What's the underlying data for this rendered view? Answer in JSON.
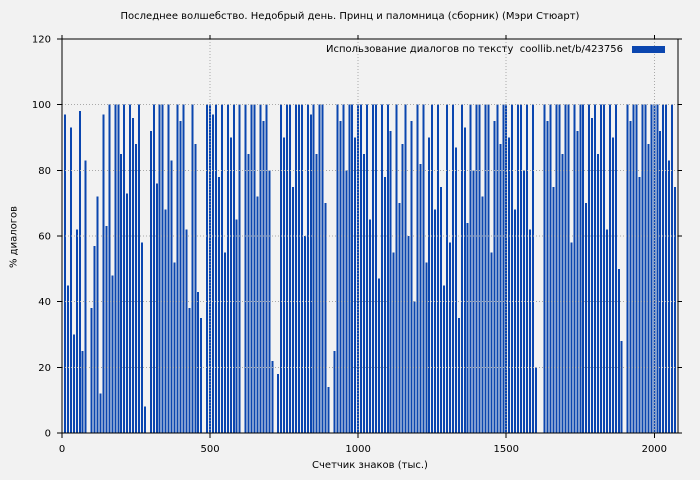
{
  "colors": {
    "background": "#f2f2f2",
    "bar": "#0b46af",
    "grid": "#a9a9a9",
    "axis": "#000000",
    "text": "#000000"
  },
  "chart_data": {
    "type": "bar",
    "title": "Последнее волшебство. Недобрый день. Принц и паломница (сборник) (Мэри Стюарт)",
    "legend": "Использование диалогов по тексту  coollib.net/b/423756",
    "legend_position": "top-right-inside",
    "xlabel": "Счетчик знаков (тыс.)",
    "ylabel": "% диалогов",
    "grid": true,
    "xlim": [
      0,
      2080
    ],
    "ylim": [
      0,
      120
    ],
    "x_ticks": [
      0,
      500,
      1000,
      1500,
      2000
    ],
    "y_ticks": [
      0,
      20,
      40,
      60,
      80,
      100,
      120
    ],
    "x_start": 10,
    "x_step": 10,
    "values": [
      97,
      45,
      93,
      30,
      62,
      98,
      25,
      83,
      0,
      38,
      57,
      72,
      12,
      97,
      63,
      100,
      48,
      100,
      100,
      85,
      100,
      73,
      100,
      96,
      88,
      100,
      58,
      8,
      0,
      92,
      100,
      76,
      100,
      100,
      68,
      100,
      83,
      52,
      100,
      95,
      100,
      62,
      38,
      100,
      88,
      43,
      35,
      0,
      100,
      100,
      97,
      100,
      78,
      100,
      55,
      100,
      90,
      100,
      65,
      100,
      0,
      100,
      85,
      100,
      100,
      72,
      100,
      95,
      100,
      80,
      22,
      0,
      18,
      100,
      90,
      100,
      100,
      75,
      100,
      100,
      100,
      60,
      100,
      97,
      100,
      85,
      100,
      100,
      70,
      14,
      0,
      25,
      100,
      95,
      100,
      80,
      100,
      100,
      90,
      100,
      100,
      85,
      100,
      65,
      100,
      100,
      47,
      100,
      78,
      100,
      92,
      55,
      100,
      70,
      88,
      100,
      60,
      95,
      40,
      100,
      82,
      100,
      52,
      90,
      100,
      68,
      100,
      75,
      45,
      100,
      58,
      100,
      87,
      35,
      100,
      93,
      64,
      100,
      80,
      100,
      100,
      72,
      100,
      100,
      55,
      95,
      100,
      88,
      100,
      100,
      90,
      100,
      68,
      100,
      100,
      80,
      100,
      62,
      100,
      20,
      0,
      0,
      100,
      95,
      100,
      75,
      100,
      100,
      85,
      100,
      100,
      58,
      100,
      92,
      100,
      100,
      70,
      100,
      96,
      100,
      85,
      100,
      100,
      62,
      100,
      90,
      100,
      50,
      28,
      0,
      100,
      95,
      100,
      100,
      78,
      100,
      100,
      88,
      100,
      100,
      100,
      92,
      100,
      100,
      83,
      100,
      75
    ]
  }
}
